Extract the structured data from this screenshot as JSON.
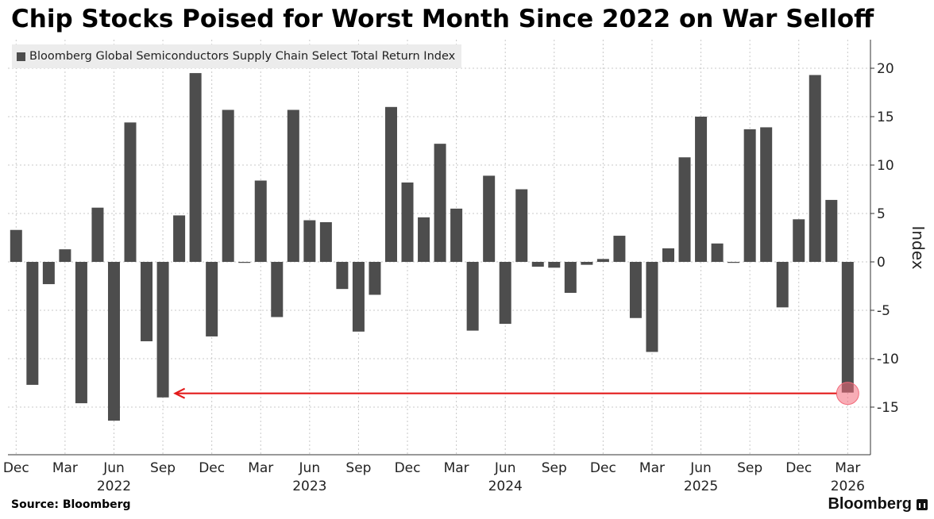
{
  "title": "Chip Stocks Poised for Worst Month Since 2022 on War Selloff",
  "source": "Source: Bloomberg",
  "brand": "Bloomberg",
  "colors": {
    "bar": "#4d4d4d",
    "arrow": "#e31b1b",
    "highlight": "#f26a7a",
    "grid": "#c8c8c8"
  },
  "chart_data": {
    "type": "bar",
    "legend": "Bloomberg Global Semiconductors Supply Chain Select Total Return Index",
    "ylabel": "Index",
    "ylim": [
      -20,
      22
    ],
    "yticks": [
      20,
      15,
      10,
      5,
      0,
      -5,
      -10,
      -15
    ],
    "ytick_labels": [
      "20",
      "15",
      "10",
      "5",
      "0",
      "-5",
      "-10",
      "-15"
    ],
    "grid": true,
    "periods": [
      "Dec 2021",
      "Jan 2022",
      "Feb 2022",
      "Mar 2022",
      "Apr 2022",
      "May 2022",
      "Jun 2022",
      "Jul 2022",
      "Aug 2022",
      "Sep 2022",
      "Oct 2022",
      "Nov 2022",
      "Dec 2022",
      "Jan 2023",
      "Feb 2023",
      "Mar 2023",
      "Apr 2023",
      "May 2023",
      "Jun 2023",
      "Jul 2023",
      "Aug 2023",
      "Sep 2023",
      "Oct 2023",
      "Nov 2023",
      "Dec 2023",
      "Jan 2024",
      "Feb 2024",
      "Mar 2024",
      "Apr 2024",
      "May 2024",
      "Jun 2024",
      "Jul 2024",
      "Aug 2024",
      "Sep 2024",
      "Oct 2024",
      "Nov 2024",
      "Dec 2024",
      "Jan 2025",
      "Feb 2025",
      "Mar 2025",
      "Apr 2025",
      "May 2025",
      "Jun 2025",
      "Jul 2025",
      "Aug 2025",
      "Sep 2025",
      "Oct 2025",
      "Nov 2025",
      "Dec 2025",
      "Jan 2026",
      "Feb 2026",
      "Mar 2026"
    ],
    "values": [
      3.3,
      -12.7,
      -2.3,
      1.3,
      -14.6,
      5.6,
      -16.4,
      14.4,
      -8.2,
      -14.0,
      4.8,
      19.5,
      -7.7,
      15.7,
      -0.1,
      8.4,
      -5.7,
      15.7,
      4.3,
      4.1,
      -2.8,
      -7.2,
      -3.4,
      16.0,
      8.2,
      4.6,
      12.2,
      5.5,
      -7.1,
      8.9,
      -6.4,
      7.5,
      -0.5,
      -0.6,
      -3.2,
      -0.3,
      0.3,
      2.7,
      -5.8,
      -9.3,
      1.4,
      10.8,
      15.0,
      1.9,
      -0.1,
      13.7,
      13.9,
      -4.7,
      4.4,
      19.3,
      6.4,
      -13.5
    ],
    "x_month_labels": [
      "Dec",
      "Mar",
      "Jun",
      "Sep",
      "Dec",
      "Mar",
      "Jun",
      "Sep",
      "Dec",
      "Mar",
      "Jun",
      "Sep",
      "Dec",
      "Mar",
      "Jun",
      "Sep",
      "Dec",
      "Mar"
    ],
    "x_month_label_indices": [
      0,
      3,
      6,
      9,
      12,
      15,
      18,
      21,
      24,
      27,
      30,
      33,
      36,
      39,
      42,
      45,
      48,
      51
    ],
    "x_year_labels": [
      "2022",
      "2023",
      "2024",
      "2025",
      "2026"
    ],
    "x_year_label_indices": [
      6,
      18,
      30,
      42,
      51
    ],
    "annotation": {
      "type": "arrow",
      "from_index": 51,
      "to_index": 10,
      "level": -13.5,
      "highlight_index": 51
    }
  }
}
